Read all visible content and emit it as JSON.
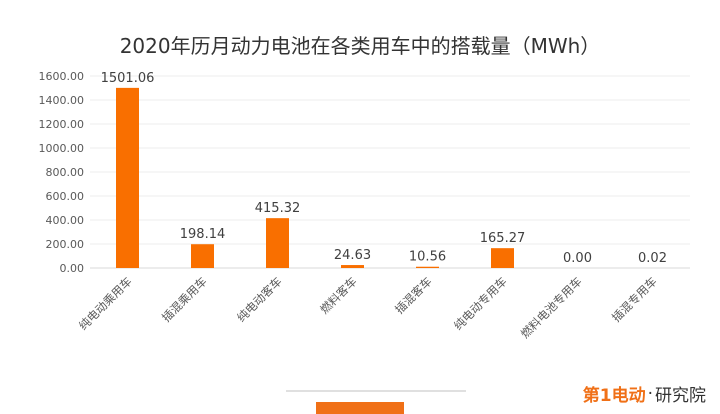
{
  "chart_data": {
    "type": "bar",
    "title": "2020年历月动力电池在各类用车中的搭载量（MWh）",
    "categories": [
      "纯电动乘用车",
      "插混乘用车",
      "纯电动客车",
      "燃料客车",
      "插混客车",
      "纯电动专用车",
      "燃料电池专用车",
      "插混专用车"
    ],
    "values": [
      1501.06,
      198.14,
      415.32,
      24.63,
      10.56,
      165.27,
      0.0,
      0.02
    ],
    "value_labels": [
      "1501.06",
      "198.14",
      "415.32",
      "24.63",
      "10.56",
      "165.27",
      "0.00",
      "0.02"
    ],
    "y_ticks": [
      "0.00",
      "200.00",
      "400.00",
      "600.00",
      "800.00",
      "1000.00",
      "1200.00",
      "1400.00",
      "1600.00"
    ],
    "ylim": [
      0,
      1600
    ],
    "xlabel": "",
    "ylabel": "",
    "grid": true,
    "legend": "none",
    "bar_color": "#f96f00"
  },
  "brand": {
    "logo_text": "第1电动",
    "separator": "·",
    "suffix": "研究院"
  }
}
